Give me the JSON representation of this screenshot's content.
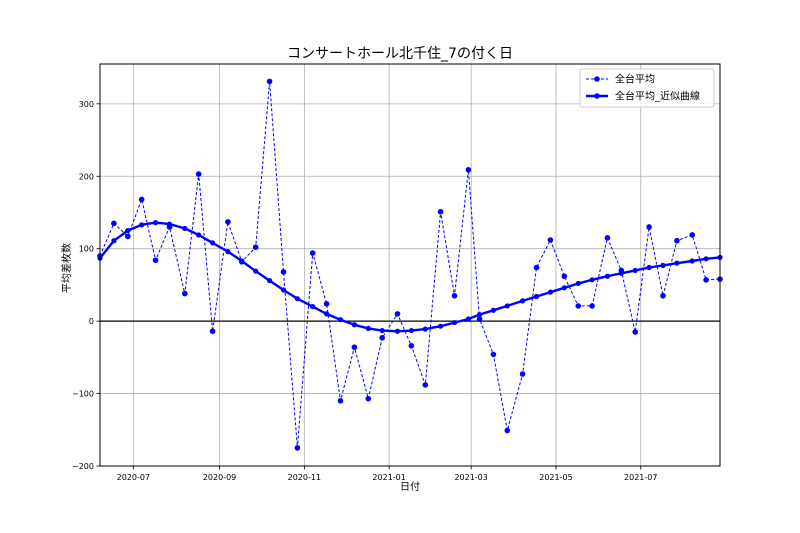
{
  "chart_data": {
    "type": "line",
    "title": "コンサートホール北千住_7の付く日",
    "xlabel": "日付",
    "ylabel": "平均差枚数",
    "x_range": [
      "2020-06-07",
      "2021-08-27"
    ],
    "ylim": [
      -200,
      355
    ],
    "x_ticks": [
      "2020-07",
      "2020-09",
      "2020-11",
      "2021-01",
      "2021-03",
      "2021-05",
      "2021-07"
    ],
    "y_ticks": [
      -200,
      -100,
      0,
      100,
      200,
      300
    ],
    "grid": true,
    "legend_position": "top-right",
    "zero_line": true,
    "x": [
      "2020-06-07",
      "2020-06-17",
      "2020-06-27",
      "2020-07-07",
      "2020-07-17",
      "2020-07-27",
      "2020-08-07",
      "2020-08-17",
      "2020-08-27",
      "2020-09-07",
      "2020-09-17",
      "2020-09-27",
      "2020-10-07",
      "2020-10-17",
      "2020-10-27",
      "2020-11-07",
      "2020-11-17",
      "2020-11-27",
      "2020-12-07",
      "2020-12-17",
      "2020-12-27",
      "2021-01-07",
      "2021-01-17",
      "2021-01-27",
      "2021-02-07",
      "2021-02-17",
      "2021-02-27",
      "2021-03-07",
      "2021-03-17",
      "2021-03-27",
      "2021-04-07",
      "2021-04-17",
      "2021-04-27",
      "2021-05-07",
      "2021-05-17",
      "2021-05-27",
      "2021-06-07",
      "2021-06-17",
      "2021-06-27",
      "2021-07-07",
      "2021-07-17",
      "2021-07-27",
      "2021-08-07",
      "2021-08-17",
      "2021-08-27"
    ],
    "series": [
      {
        "name": "全台平均",
        "style": "dashed",
        "color": "#0000ff",
        "values": [
          90,
          135,
          117,
          168,
          84,
          130,
          38,
          203,
          -14,
          137,
          82,
          102,
          331,
          68,
          -175,
          94,
          24,
          -110,
          -36,
          -107,
          -23,
          10,
          -34,
          -88,
          151,
          35,
          209,
          3,
          -46,
          -151,
          -73,
          74,
          112,
          62,
          21,
          21,
          115,
          70,
          -15,
          130,
          35,
          111,
          119,
          57,
          58
        ]
      },
      {
        "name": "全台平均_近似曲線",
        "style": "solid",
        "color": "#0000ff",
        "values": [
          87,
          111,
          125,
          133,
          136,
          134,
          128,
          119,
          108,
          96,
          83,
          69,
          56,
          43,
          31,
          20,
          10,
          2,
          -5,
          -10,
          -13,
          -14,
          -13,
          -11,
          -7,
          -2,
          3,
          9,
          15,
          21,
          28,
          34,
          40,
          46,
          52,
          57,
          62,
          66,
          70,
          74,
          77,
          80,
          83,
          86,
          88
        ]
      }
    ]
  }
}
